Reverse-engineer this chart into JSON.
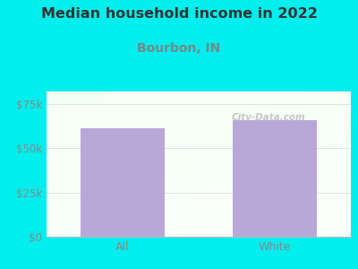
{
  "title": "Median household income in 2022",
  "subtitle": "Bourbon, IN",
  "categories": [
    "All",
    "White"
  ],
  "values": [
    61000,
    66000
  ],
  "bar_color": "#b8a8d8",
  "background_color": "#00EEEE",
  "title_color": "#333333",
  "subtitle_color": "#778888",
  "tick_color": "#888888",
  "yticks": [
    0,
    25000,
    50000,
    75000
  ],
  "ytick_labels": [
    "$0",
    "$25k",
    "$50k",
    "$75k"
  ],
  "ylim": [
    0,
    82000
  ],
  "title_fontsize": 11.5,
  "subtitle_fontsize": 10,
  "watermark": "City-Data.com",
  "grid_color": "#dddddd",
  "spine_color": "#bbbbbb"
}
